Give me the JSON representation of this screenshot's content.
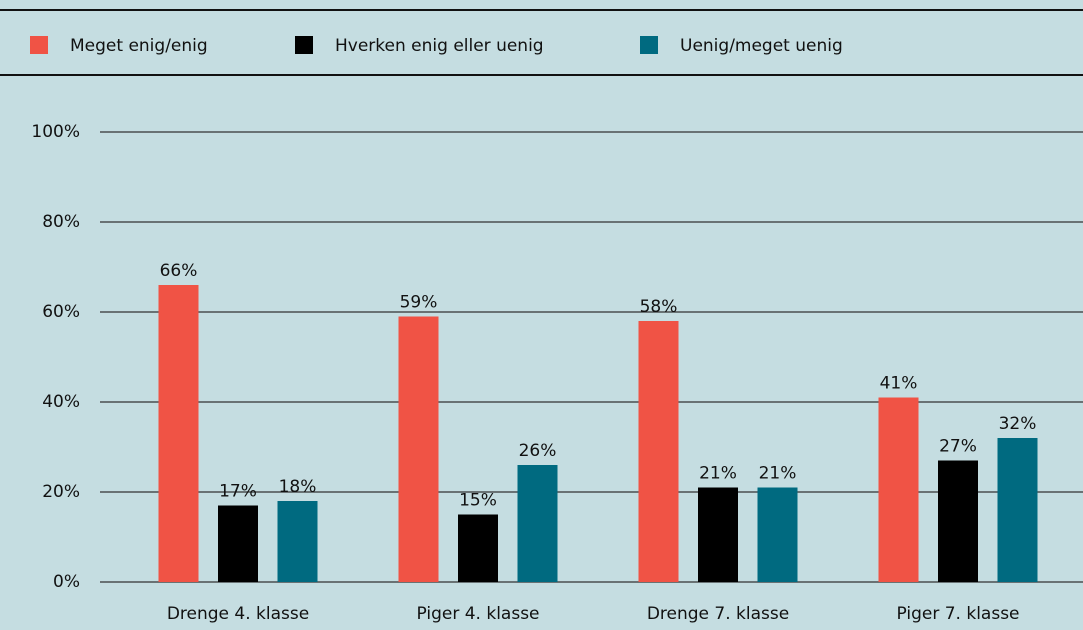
{
  "chart_data": {
    "type": "bar",
    "categories": [
      "Drenge 4. klasse",
      "Piger 4. klasse",
      "Drenge 7. klasse",
      "Piger 7. klasse"
    ],
    "series": [
      {
        "name": "Meget enig/enig",
        "color": "#f05345",
        "values": [
          66,
          59,
          58,
          41
        ],
        "value_labels": [
          "66%",
          "59%",
          "58%",
          "41%"
        ]
      },
      {
        "name": "Hverken enig eller uenig",
        "color": "#000000",
        "values": [
          17,
          15,
          21,
          27
        ],
        "value_labels": [
          "17%",
          "15%",
          "21%",
          "27%"
        ]
      },
      {
        "name": "Uenig/meget uenig",
        "color": "#006a80",
        "values": [
          18,
          26,
          21,
          32
        ],
        "value_labels": [
          "18%",
          "26%",
          "21%",
          "32%"
        ]
      }
    ],
    "ylim": [
      0,
      100
    ],
    "yticks": [
      {
        "value": 0,
        "label": "0%"
      },
      {
        "value": 20,
        "label": "20%"
      },
      {
        "value": 40,
        "label": "40%"
      },
      {
        "value": 60,
        "label": "60%"
      },
      {
        "value": 80,
        "label": "80%"
      },
      {
        "value": 100,
        "label": "100%"
      }
    ],
    "grid": true,
    "legend": "top"
  }
}
